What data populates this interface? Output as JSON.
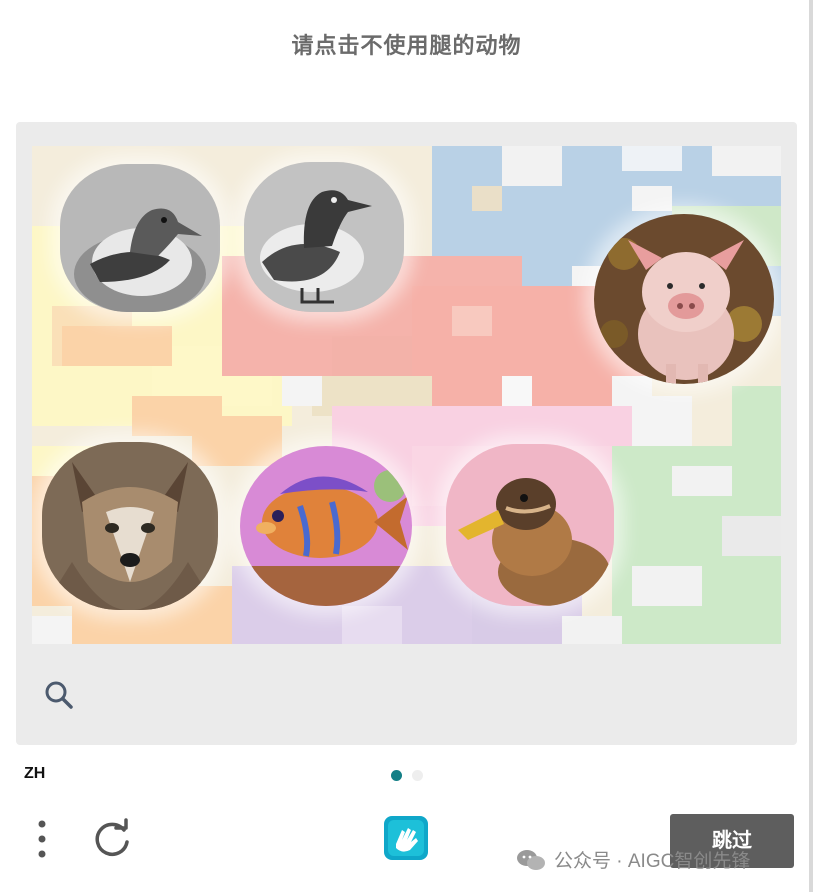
{
  "prompt": "请点击不使用腿的动物",
  "tiles": [
    {
      "icon": "duck-icon",
      "ariaLabel": "duck"
    },
    {
      "icon": "duck-icon",
      "ariaLabel": "duck"
    },
    {
      "icon": "pig-icon",
      "ariaLabel": "pig"
    },
    {
      "icon": "wolf-icon",
      "ariaLabel": "wolf"
    },
    {
      "icon": "fish-icon",
      "ariaLabel": "fish"
    },
    {
      "icon": "duck-icon",
      "ariaLabel": "duck"
    }
  ],
  "language": "ZH",
  "pagination": {
    "current": 1,
    "total": 2
  },
  "skip_label": "跳过",
  "watermark": "公众号 · AIGC智创先锋",
  "colors": {
    "accent": "#137f86",
    "skip_button": "#5e5e5e",
    "prompt_text": "#6b6b6b",
    "panel_bg": "#ebebeb"
  }
}
